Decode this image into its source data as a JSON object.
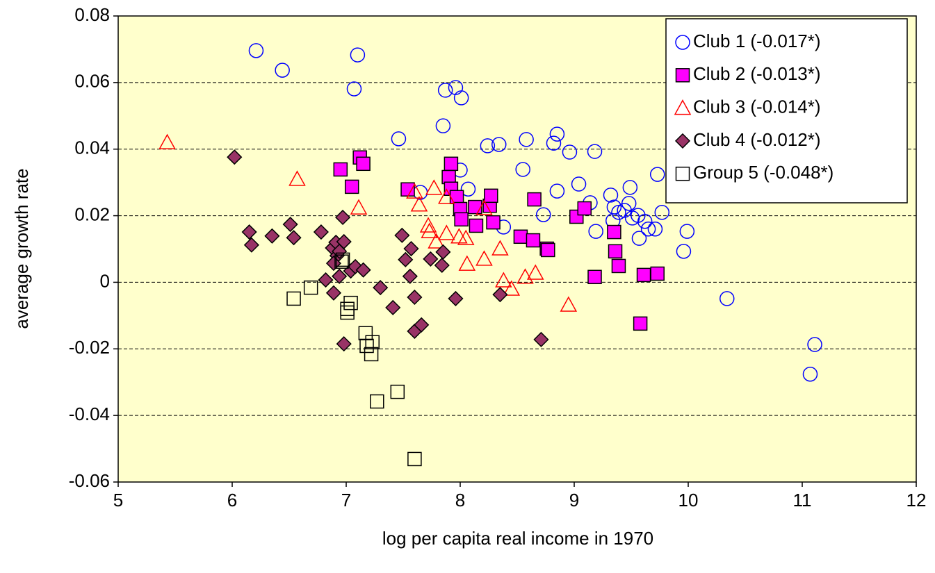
{
  "chart_data": {
    "type": "scatter",
    "x_label": "log per capita real income in 1970",
    "y_label": "average growth rate",
    "xlim": [
      5,
      12
    ],
    "xticks": [
      5,
      6,
      7,
      8,
      9,
      10,
      11,
      12
    ],
    "ylim": [
      -0.06,
      0.08
    ],
    "yticks": [
      -0.06,
      -0.04,
      -0.02,
      0,
      0.02,
      0.04,
      0.06,
      0.08
    ],
    "grid": true,
    "background": "#ffffcc",
    "legend": "upper right",
    "series": [
      {
        "name": "Club 1 (-0.017*)",
        "color": "#0000ff",
        "marker": "circle",
        "filled": false,
        "x": [
          6.21,
          6.44,
          7.1,
          7.07,
          7.46,
          7.65,
          7.87,
          7.85,
          7.96,
          8.01,
          8.0,
          8.07,
          8.24,
          8.34,
          8.38,
          8.58,
          8.55,
          8.73,
          8.85,
          8.82,
          8.85,
          8.96,
          9.04,
          9.14,
          9.18,
          9.19,
          9.32,
          9.35,
          9.34,
          9.39,
          9.44,
          9.48,
          9.49,
          9.51,
          9.56,
          9.57,
          9.62,
          9.65,
          9.71,
          9.73,
          9.77,
          9.99,
          9.96,
          10.34,
          11.11,
          11.07
        ],
        "values": [
          0.0696,
          0.0637,
          0.0683,
          0.0581,
          0.0431,
          0.027,
          0.0577,
          0.047,
          0.0585,
          0.0554,
          0.0337,
          0.028,
          0.041,
          0.0414,
          0.0166,
          0.0429,
          0.0339,
          0.0203,
          0.0445,
          0.0418,
          0.0274,
          0.0391,
          0.0295,
          0.0239,
          0.0393,
          0.0153,
          0.0262,
          0.0226,
          0.0185,
          0.021,
          0.0216,
          0.0237,
          0.0285,
          0.0193,
          0.0201,
          0.0132,
          0.0183,
          0.016,
          0.016,
          0.0324,
          0.021,
          0.0153,
          0.0093,
          -0.0049,
          -0.0187,
          -0.0276
        ]
      },
      {
        "name": "Club 2 (-0.013*)",
        "color": "#ff00ff",
        "marker": "square",
        "filled": true,
        "x": [
          6.95,
          7.12,
          7.15,
          7.05,
          7.54,
          7.92,
          7.9,
          7.92,
          7.97,
          8.0,
          8.01,
          8.13,
          8.14,
          8.26,
          8.27,
          8.29,
          8.53,
          8.64,
          8.65,
          8.76,
          8.77,
          9.02,
          9.09,
          9.18,
          9.35,
          9.36,
          9.39,
          9.61,
          9.73,
          9.58
        ],
        "values": [
          0.0339,
          0.0375,
          0.0356,
          0.0287,
          0.0279,
          0.0356,
          0.0316,
          0.0281,
          0.0256,
          0.022,
          0.0189,
          0.0226,
          0.017,
          0.023,
          0.026,
          0.018,
          0.0137,
          0.0126,
          0.0249,
          0.0101,
          0.0097,
          0.0197,
          0.0222,
          0.0016,
          0.0151,
          0.0093,
          0.0049,
          0.0022,
          0.0026,
          -0.0124
        ]
      },
      {
        "name": "Club 3 (-0.014*)",
        "color": "#ff0000",
        "marker": "triangle",
        "filled": false,
        "x": [
          5.43,
          6.57,
          7.11,
          7.6,
          7.64,
          7.72,
          7.73,
          7.77,
          7.79,
          7.88,
          7.88,
          7.99,
          8.05,
          8.06,
          8.21,
          8.21,
          8.35,
          8.38,
          8.45,
          8.57,
          8.66,
          8.95
        ],
        "values": [
          0.042,
          0.031,
          0.0224,
          0.0272,
          0.0233,
          0.017,
          0.0153,
          0.0283,
          0.0122,
          0.0256,
          0.0147,
          0.0137,
          0.0132,
          0.0055,
          0.007,
          0.0222,
          0.0101,
          0.0005,
          -0.002,
          0.0016,
          0.0028,
          -0.0068
        ]
      },
      {
        "name": "Club 4 (-0.012*)",
        "color": "#993366",
        "marker": "diamond",
        "filled": true,
        "x": [
          6.02,
          6.15,
          6.17,
          6.35,
          6.51,
          6.54,
          6.78,
          6.88,
          6.91,
          6.92,
          6.89,
          6.97,
          6.98,
          6.94,
          6.94,
          6.82,
          6.89,
          7.04,
          7.08,
          7.15,
          6.98,
          7.3,
          7.41,
          7.49,
          7.52,
          7.57,
          7.56,
          7.6,
          7.6,
          7.66,
          7.74,
          7.85,
          7.84,
          7.96,
          8.35,
          8.71
        ],
        "values": [
          0.0376,
          0.0151,
          0.0112,
          0.0139,
          0.0174,
          0.0134,
          0.0151,
          0.0103,
          0.012,
          0.008,
          0.0057,
          0.0195,
          0.0122,
          0.0093,
          0.0018,
          0.0007,
          -0.0032,
          0.0034,
          0.0047,
          0.0037,
          -0.0185,
          -0.0016,
          -0.0076,
          0.0141,
          0.0068,
          0.0101,
          0.0018,
          -0.0045,
          -0.0147,
          -0.0128,
          0.007,
          0.0091,
          0.0051,
          -0.0049,
          -0.0037,
          -0.0172
        ]
      },
      {
        "name": "Group 5 (-0.048*)",
        "color": "#000000",
        "marker": "square",
        "filled": false,
        "x": [
          6.54,
          6.69,
          6.96,
          6.97,
          7.01,
          7.01,
          7.04,
          7.17,
          7.18,
          7.23,
          7.22,
          7.27,
          7.45,
          7.6
        ],
        "values": [
          -0.0049,
          -0.0016,
          0.0062,
          0.0068,
          -0.008,
          -0.0091,
          -0.0062,
          -0.0153,
          -0.0191,
          -0.018,
          -0.0216,
          -0.0358,
          -0.0329,
          -0.0531
        ]
      }
    ]
  }
}
